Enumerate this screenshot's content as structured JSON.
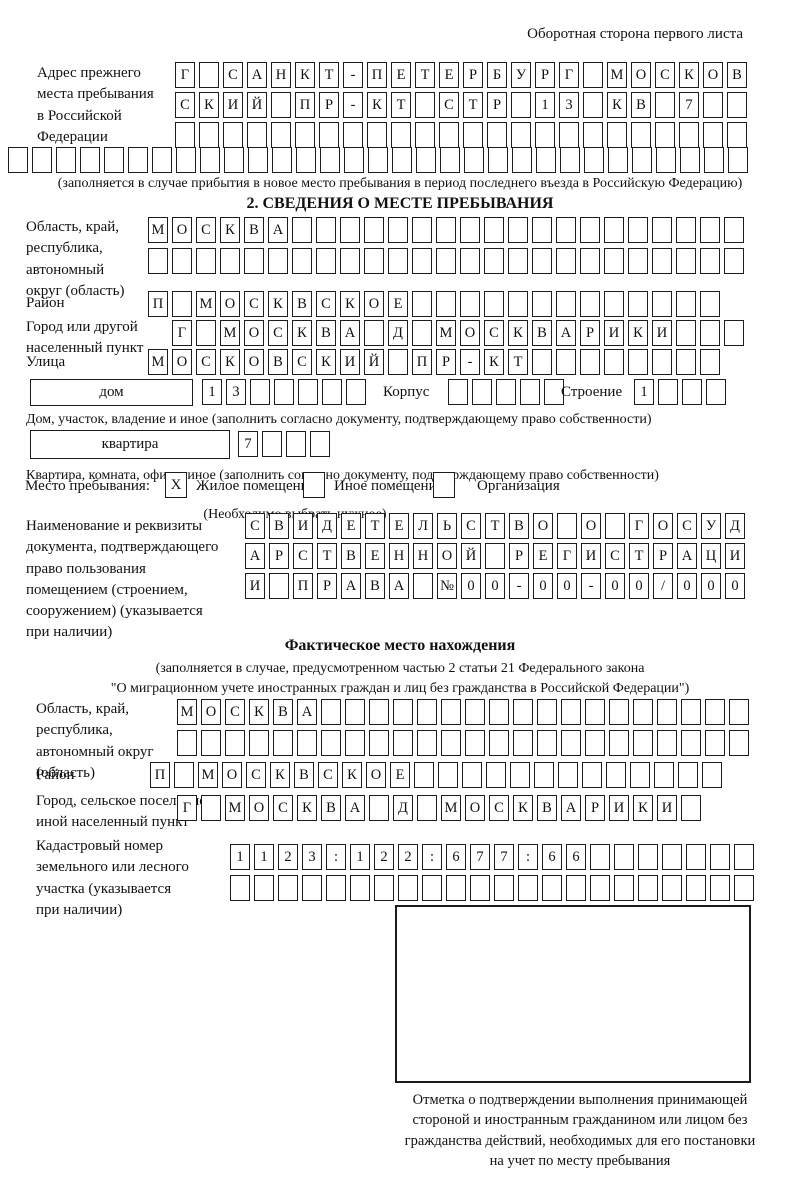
{
  "header": {
    "note": "Оборотная сторона первого листа"
  },
  "prev_address": {
    "label": "Адрес прежнего\nместа пребывания\nв Российской\nФедерации",
    "row1": {
      "len": 24,
      "text": "Г САНКТ-ПЕТЕРБУРГ МОСКОВ"
    },
    "row2": {
      "len": 24,
      "text": "СКИЙ ПР-КТ СТР 13 КВ 7"
    },
    "row3": {
      "len": 24,
      "text": ""
    },
    "row4": {
      "len": 31,
      "text": ""
    },
    "caption": "(заполняется в случае прибытия в новое место пребывания в период последнего въезда в Российскую Федерацию)"
  },
  "section2": {
    "title": "2. СВЕДЕНИЯ О МЕСТЕ ПРЕБЫВАНИЯ",
    "oblast": {
      "label": "Область, край,\nреспублика,\nавтономный\nокруг (область)",
      "rowA": {
        "len": 25,
        "text": "МОСКВА"
      },
      "rowB": {
        "len": 25,
        "text": ""
      }
    },
    "raion": {
      "label": "Район",
      "row": {
        "len": 24,
        "text": "П МОСКВСКОЕ"
      }
    },
    "gorod": {
      "label": "Город или другой\nнаселенный пункт",
      "row": {
        "len": 24,
        "text": "Г МОСКВА Д МОСКВАРИКИ"
      }
    },
    "ulitsa": {
      "label": "Улица",
      "row": {
        "len": 24,
        "text": "МОСКОВСКИЙ ПР-КТ"
      }
    },
    "dom": {
      "box_label": "дом",
      "cells": {
        "len": 7,
        "text": "13"
      },
      "korpus_label": "Корпус",
      "korpus_cells": {
        "len": 5,
        "text": ""
      },
      "stroenie_label": "Строение",
      "stroenie_cells": {
        "len": 4,
        "text": "1"
      },
      "caption": "Дом, участок, владение и иное (заполнить согласно документу, подтверждающему право собственности)"
    },
    "kvartira": {
      "box_label": "квартира",
      "cells": {
        "len": 4,
        "text": "7"
      },
      "caption": "Квартира, комната, офис и иное (заполнить согласно документу, подтверждающему право собственности)"
    },
    "mesto": {
      "label": "Место пребывания:",
      "zhiloe": {
        "label": "Жилое помещение",
        "checked": "X"
      },
      "inoe": {
        "label": "Иное помещение",
        "checked": ""
      },
      "org": {
        "label": "Организация",
        "checked": ""
      },
      "hint": "(Необходимо выбрать нужное)"
    },
    "document": {
      "label": "Наименование и реквизиты\nдокумента, подтверждающего\nправо пользования\nпомещением (строением,\nсооружением) (указывается\nпри наличии)",
      "rowA": {
        "len": 21,
        "text": "СВИДЕТЕЛЬСТВО О ГОСУД"
      },
      "rowB": {
        "len": 21,
        "text": "АРСТВЕННОЙ РЕГИСТРАЦИ"
      },
      "rowC": {
        "len": 21,
        "text": "И ПРАВА №00-00-00/000"
      }
    }
  },
  "fact": {
    "title": "Фактическое место нахождения",
    "caption": "(заполняется в случае, предусмотренном частью 2 статьи 21 Федерального закона\n\"О миграционном учете иностранных граждан и лиц без гражданства в Российской Федерации\")",
    "oblast": {
      "label": "Область, край,\nреспублика,\nавтономный округ\n(область)",
      "rowA": {
        "len": 24,
        "text": "МОСКВА"
      },
      "rowB": {
        "len": 24,
        "text": ""
      }
    },
    "raion": {
      "label": "Район",
      "row": {
        "len": 24,
        "text": "П МОСКВСКОЕ"
      }
    },
    "gorod": {
      "label": "Город, сельское поселение,\nиной населенный пункт",
      "row": {
        "len": 22,
        "text": "Г МОСКВА Д МОСКВАРИКИ"
      }
    },
    "kadastr": {
      "label": "Кадастровый номер\nземельного или лесного\nучастка (указывается\nпри наличии)",
      "rowA": {
        "len": 22,
        "text": "1123:122:677:66"
      },
      "rowB": {
        "len": 22,
        "text": ""
      }
    },
    "stamp_caption": "Отметка о подтверждении выполнения принимающей\nстороной и иностранным гражданином или лицом без\nгражданства действий, необходимых для его постановки\nна учет по месту пребывания"
  }
}
